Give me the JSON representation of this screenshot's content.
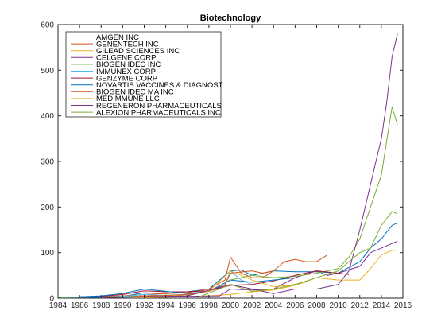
{
  "chart_data": {
    "type": "line",
    "title": "Biotechnology",
    "xlabel": "",
    "ylabel": "",
    "xlim": [
      1984,
      2016
    ],
    "ylim": [
      0,
      600
    ],
    "x_ticks": [
      "1984",
      "1986",
      "1988",
      "1990",
      "1992",
      "1994",
      "1996",
      "1998",
      "2000",
      "2002",
      "2004",
      "2006",
      "2008",
      "2010",
      "2012",
      "2014",
      "2016"
    ],
    "y_ticks": [
      "0",
      "100",
      "200",
      "300",
      "400",
      "500",
      "600"
    ],
    "grid": false,
    "legend_placement": "top-left",
    "series": [
      {
        "name": "AMGEN INC",
        "color": "#0072bd",
        "x": [
          1984,
          1986,
          1988,
          1990,
          1992,
          1994,
          1996,
          1998,
          2000,
          2001,
          2002,
          2004,
          2006,
          2008,
          2010,
          2012,
          2013,
          2014,
          2015,
          2015.5
        ],
        "y": [
          0.5,
          1,
          2,
          4,
          12,
          10,
          14,
          20,
          60,
          62,
          50,
          60,
          58,
          58,
          55,
          80,
          110,
          130,
          160,
          165
        ]
      },
      {
        "name": "GENENTECH INC",
        "color": "#d95319",
        "x": [
          1986,
          1988,
          1990,
          1992,
          1994,
          1996,
          1998,
          1999.5,
          2000,
          2001,
          2002,
          2003,
          2004,
          2005,
          2006,
          2007,
          2008,
          2009
        ],
        "y": [
          3,
          4,
          5,
          8,
          10,
          12,
          20,
          40,
          90,
          55,
          45,
          45,
          60,
          80,
          85,
          80,
          80,
          95
        ]
      },
      {
        "name": "GILEAD SCIENCES INC",
        "color": "#edb120",
        "x": [
          1992,
          1994,
          1996,
          1998,
          2000,
          2002,
          2004,
          2006,
          2008,
          2010,
          2012,
          2013,
          2014,
          2015,
          2015.5
        ],
        "y": [
          1,
          2,
          3,
          5,
          8,
          14,
          18,
          28,
          45,
          40,
          40,
          65,
          95,
          105,
          105
        ]
      },
      {
        "name": "CELGENE CORP",
        "color": "#7e2f8e",
        "x": [
          1988,
          1992,
          1996,
          1999,
          2000,
          2002,
          2004,
          2006,
          2008,
          2009,
          2010,
          2012,
          2013,
          2014,
          2015,
          2015.5
        ],
        "y": [
          1,
          3,
          4,
          5,
          20,
          18,
          20,
          45,
          60,
          50,
          55,
          70,
          100,
          110,
          120,
          125
        ]
      },
      {
        "name": "BIOGEN IDEC INC",
        "color": "#77ac30",
        "x": [
          1984,
          1988,
          1992,
          1996,
          1998,
          2000,
          2002,
          2004,
          2006,
          2008,
          2010,
          2011,
          2012,
          2013,
          2014,
          2015,
          2015.5
        ],
        "y": [
          1,
          3,
          5,
          8,
          15,
          40,
          50,
          45,
          48,
          55,
          65,
          90,
          130,
          200,
          270,
          420,
          380
        ]
      },
      {
        "name": "IMMUNEX CORP",
        "color": "#4dbeee",
        "x": [
          1988,
          1990,
          1992,
          1994,
          1996,
          1998,
          1999.5,
          2000,
          2001,
          2002
        ],
        "y": [
          2,
          4,
          8,
          6,
          8,
          15,
          30,
          60,
          40,
          30
        ]
      },
      {
        "name": "GENZYME CORP",
        "color": "#a2142f",
        "x": [
          1986,
          1988,
          1990,
          1992,
          1994,
          1996,
          1998,
          2000,
          2002,
          2004,
          2006,
          2008,
          2010,
          2011
        ],
        "y": [
          2,
          4,
          8,
          16,
          14,
          14,
          16,
          28,
          30,
          38,
          50,
          60,
          55,
          52
        ]
      },
      {
        "name": "NOVARTIS VACCINES & DIAGNOST",
        "color": "#0072bd",
        "x": [
          1986,
          1988,
          1990,
          1992,
          1994,
          1996,
          1998,
          2000,
          2002,
          2004,
          2006
        ],
        "y": [
          3,
          5,
          10,
          20,
          15,
          10,
          15,
          40,
          35,
          40,
          45
        ]
      },
      {
        "name": "BIOGEN IDEC MA INC",
        "color": "#d95319",
        "x": [
          1990,
          1992,
          1994,
          1996,
          1998,
          1999.5,
          2000,
          2002,
          2003,
          2004
        ],
        "y": [
          2,
          5,
          6,
          8,
          15,
          30,
          55,
          60,
          55,
          60
        ]
      },
      {
        "name": "MEDIMMUNE LLC",
        "color": "#edb120",
        "x": [
          1992,
          1994,
          1996,
          1998,
          2000,
          2001,
          2002,
          2004,
          2006,
          2007
        ],
        "y": [
          2,
          4,
          6,
          15,
          60,
          50,
          40,
          25,
          30,
          35
        ]
      },
      {
        "name": "REGENERON PHARMACEUTICALS",
        "color": "#7e2f8e",
        "x": [
          1992,
          1996,
          2000,
          2002,
          2004,
          2006,
          2008,
          2010,
          2011,
          2012,
          2013,
          2014,
          2014.5,
          2015,
          2015.5
        ],
        "y": [
          3,
          5,
          30,
          20,
          10,
          20,
          20,
          30,
          60,
          150,
          250,
          350,
          430,
          530,
          580
        ]
      },
      {
        "name": "ALEXION PHARMACEUTICALS INC",
        "color": "#77ac30",
        "x": [
          1997,
          2000,
          2002,
          2004,
          2006,
          2008,
          2010,
          2011,
          2012,
          2013,
          2014,
          2015,
          2015.5
        ],
        "y": [
          2,
          30,
          15,
          20,
          30,
          45,
          60,
          80,
          100,
          110,
          160,
          190,
          185
        ]
      }
    ]
  }
}
